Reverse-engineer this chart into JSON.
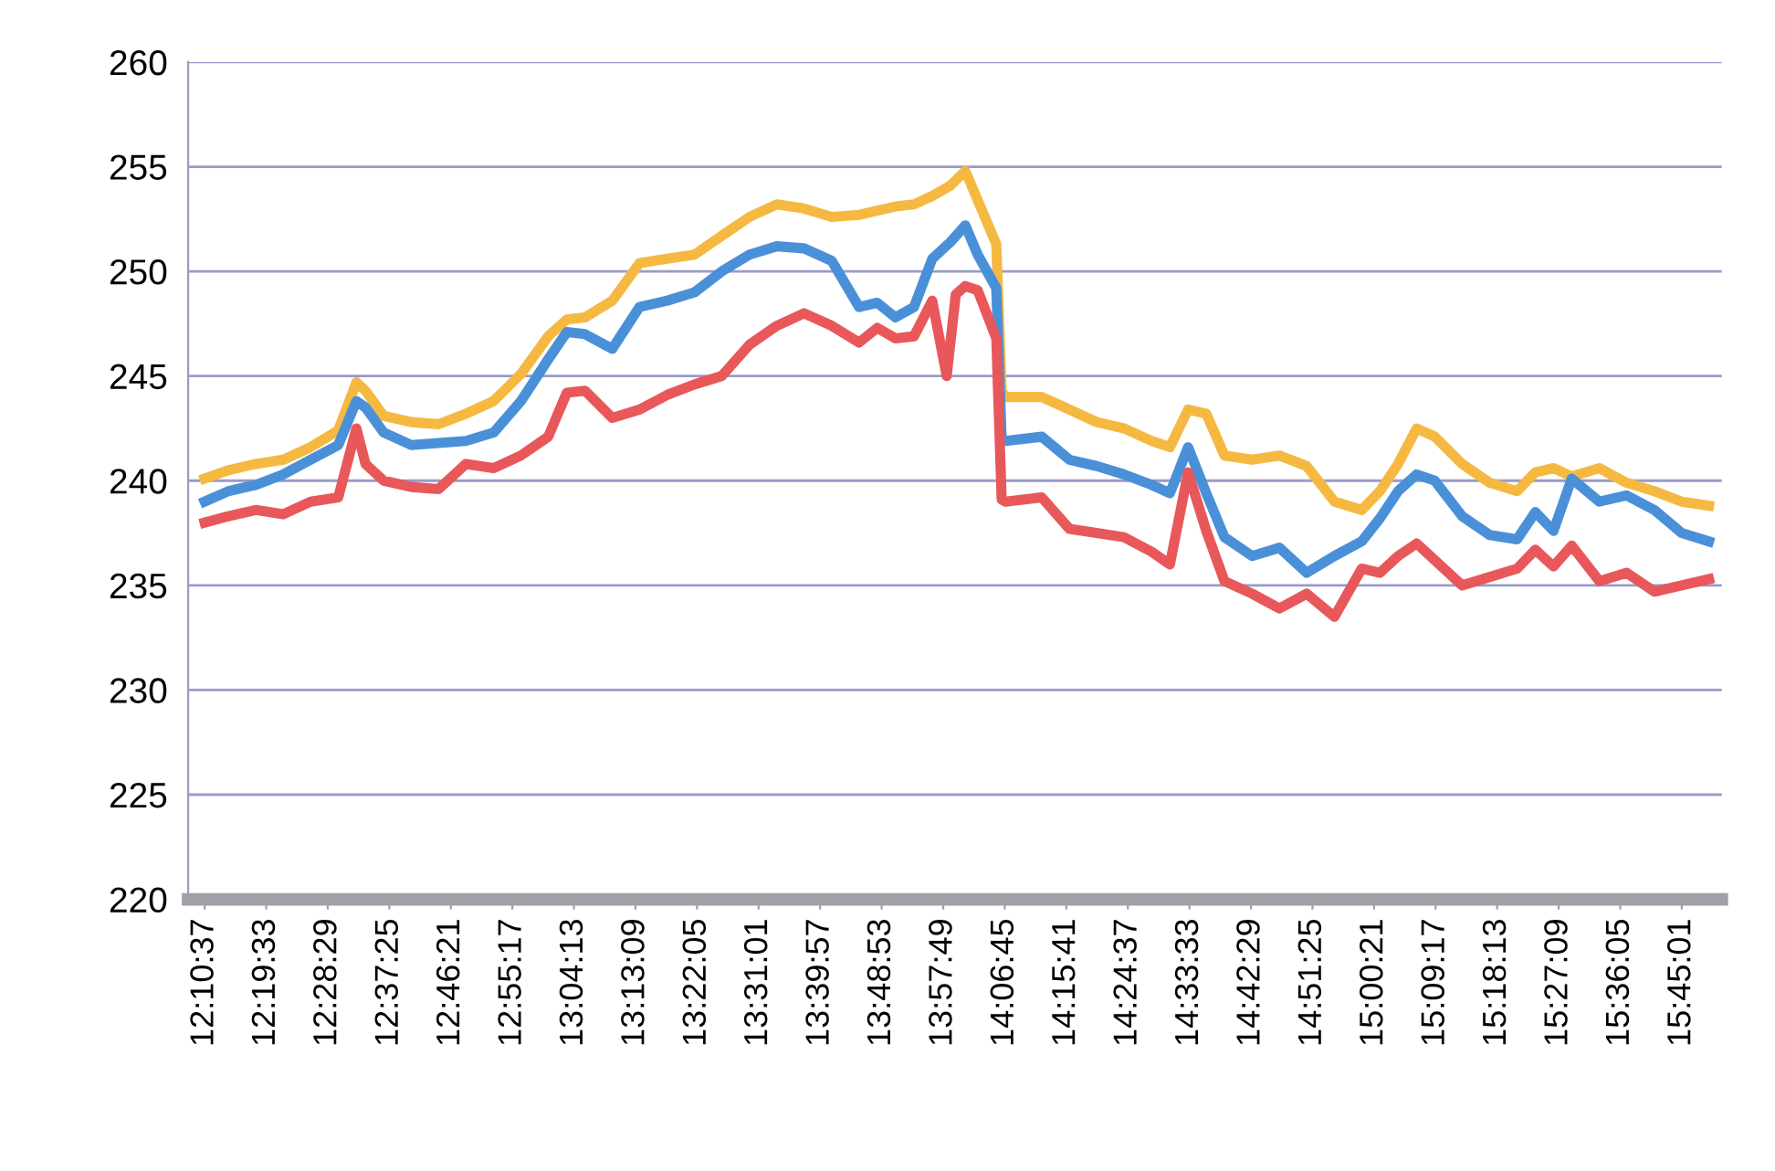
{
  "chart_data": {
    "type": "line",
    "x": [
      12.177,
      12.234,
      12.301,
      12.367,
      12.433,
      12.5,
      12.544,
      12.566,
      12.61,
      12.677,
      12.743,
      12.809,
      12.876,
      12.942,
      13.008,
      13.053,
      13.097,
      13.163,
      13.229,
      13.296,
      13.362,
      13.428,
      13.495,
      13.561,
      13.627,
      13.694,
      13.76,
      13.804,
      13.848,
      13.893,
      13.937,
      13.981,
      14.017,
      14.047,
      14.092,
      14.105,
      14.114,
      14.202,
      14.269,
      14.335,
      14.401,
      14.468,
      14.512,
      14.556,
      14.6,
      14.644,
      14.711,
      14.777,
      14.843,
      14.91,
      14.976,
      15.02,
      15.064,
      15.109,
      15.153,
      15.219,
      15.286,
      15.352,
      15.396,
      15.44,
      15.484,
      15.551,
      15.617,
      15.684,
      15.75,
      15.816
    ],
    "series": [
      {
        "color": "#f5b942",
        "values": [
          240.1,
          240.5,
          240.8,
          241.0,
          241.6,
          242.4,
          244.7,
          244.3,
          243.1,
          242.8,
          242.7,
          243.2,
          243.8,
          245.1,
          246.9,
          247.7,
          247.8,
          248.6,
          250.4,
          250.6,
          250.8,
          251.7,
          252.6,
          253.2,
          253.0,
          252.6,
          252.7,
          252.9,
          253.1,
          253.2,
          253.6,
          254.1,
          254.8,
          253.4,
          251.3,
          244.3,
          244.0,
          244.0,
          243.4,
          242.8,
          242.5,
          241.9,
          241.6,
          243.4,
          243.2,
          241.2,
          241.0,
          241.2,
          240.7,
          239.0,
          238.6,
          239.5,
          240.8,
          242.5,
          242.1,
          240.8,
          239.9,
          239.5,
          240.4,
          240.6,
          240.2,
          240.6,
          239.9,
          239.5,
          239.0,
          238.8
        ]
      },
      {
        "color": "#4a90d9",
        "values": [
          239.0,
          239.5,
          239.8,
          240.3,
          241.0,
          241.7,
          243.8,
          243.5,
          242.3,
          241.7,
          241.8,
          241.9,
          242.3,
          243.8,
          245.8,
          247.1,
          247.0,
          246.3,
          248.3,
          248.6,
          249.0,
          250.0,
          250.8,
          251.2,
          251.1,
          250.5,
          248.3,
          248.5,
          247.8,
          248.3,
          250.6,
          251.4,
          252.2,
          250.8,
          249.2,
          242.0,
          241.9,
          242.1,
          241.0,
          240.7,
          240.3,
          239.8,
          239.4,
          241.6,
          239.4,
          237.3,
          236.4,
          236.8,
          235.6,
          236.4,
          237.1,
          238.2,
          239.5,
          240.3,
          240.0,
          238.3,
          237.4,
          237.2,
          238.5,
          237.6,
          240.1,
          239.0,
          239.3,
          238.6,
          237.5,
          237.1
        ]
      },
      {
        "color": "#e8585a",
        "x": [
          12.177,
          12.234,
          12.301,
          12.367,
          12.433,
          12.5,
          12.544,
          12.566,
          12.61,
          12.677,
          12.743,
          12.809,
          12.876,
          12.942,
          13.008,
          13.053,
          13.097,
          13.163,
          13.229,
          13.296,
          13.362,
          13.428,
          13.495,
          13.561,
          13.627,
          13.694,
          13.76,
          13.804,
          13.848,
          13.893,
          13.937,
          13.972,
          13.994,
          14.017,
          14.047,
          14.092,
          14.105,
          14.114,
          14.202,
          14.269,
          14.335,
          14.401,
          14.468,
          14.512,
          14.556,
          14.6,
          14.644,
          14.711,
          14.777,
          14.843,
          14.91,
          14.976,
          15.02,
          15.064,
          15.109,
          15.153,
          15.219,
          15.286,
          15.352,
          15.396,
          15.44,
          15.484,
          15.551,
          15.617,
          15.684,
          15.75,
          15.816
        ],
        "values": [
          238.0,
          238.3,
          238.6,
          238.4,
          239.0,
          239.2,
          242.5,
          240.8,
          240.0,
          239.7,
          239.6,
          240.8,
          240.6,
          241.2,
          242.1,
          244.2,
          244.3,
          243.0,
          243.4,
          244.1,
          244.6,
          245.0,
          246.5,
          247.4,
          248.0,
          247.4,
          246.6,
          247.3,
          246.8,
          246.9,
          248.6,
          245.0,
          248.9,
          249.3,
          249.1,
          246.8,
          239.1,
          239.0,
          239.2,
          237.7,
          237.5,
          237.3,
          236.6,
          236.0,
          240.4,
          237.6,
          235.2,
          234.6,
          233.9,
          234.6,
          233.5,
          235.8,
          235.6,
          236.4,
          237.0,
          236.2,
          235.0,
          235.4,
          235.8,
          236.7,
          235.9,
          236.9,
          235.2,
          235.6,
          234.7,
          235.0,
          235.3
        ]
      }
    ],
    "xlim": [
      12.137,
      15.847
    ],
    "xticks": [
      {
        "value": 12.1769,
        "label": "12:10:37"
      },
      {
        "value": 12.3258,
        "label": "12:19:33"
      },
      {
        "value": 12.4747,
        "label": "12:28:29"
      },
      {
        "value": 12.6236,
        "label": "12:37:25"
      },
      {
        "value": 12.7725,
        "label": "12:46:21"
      },
      {
        "value": 12.9214,
        "label": "12:55:17"
      },
      {
        "value": 13.0703,
        "label": "13:04:13"
      },
      {
        "value": 13.2192,
        "label": "13:13:09"
      },
      {
        "value": 13.3681,
        "label": "13:22:05"
      },
      {
        "value": 13.5169,
        "label": "13:31:01"
      },
      {
        "value": 13.6658,
        "label": "13:39:57"
      },
      {
        "value": 13.8147,
        "label": "13:48:53"
      },
      {
        "value": 13.9636,
        "label": "13:57:49"
      },
      {
        "value": 14.1125,
        "label": "14:06:45"
      },
      {
        "value": 14.2614,
        "label": "14:15:41"
      },
      {
        "value": 14.4103,
        "label": "14:24:37"
      },
      {
        "value": 14.5592,
        "label": "14:33:33"
      },
      {
        "value": 14.7081,
        "label": "14:42:29"
      },
      {
        "value": 14.8569,
        "label": "14:51:25"
      },
      {
        "value": 15.0058,
        "label": "15:00:21"
      },
      {
        "value": 15.1547,
        "label": "15:09:17"
      },
      {
        "value": 15.3036,
        "label": "15:18:13"
      },
      {
        "value": 15.4525,
        "label": "15:27:09"
      },
      {
        "value": 15.6014,
        "label": "15:36:05"
      },
      {
        "value": 15.7503,
        "label": "15:45:01"
      }
    ],
    "ylim": [
      220,
      260
    ],
    "yticks": [
      220,
      225,
      230,
      235,
      240,
      245,
      250,
      255,
      260
    ],
    "grid": "y",
    "legend": false,
    "marker": "none",
    "line_style": "solid"
  }
}
